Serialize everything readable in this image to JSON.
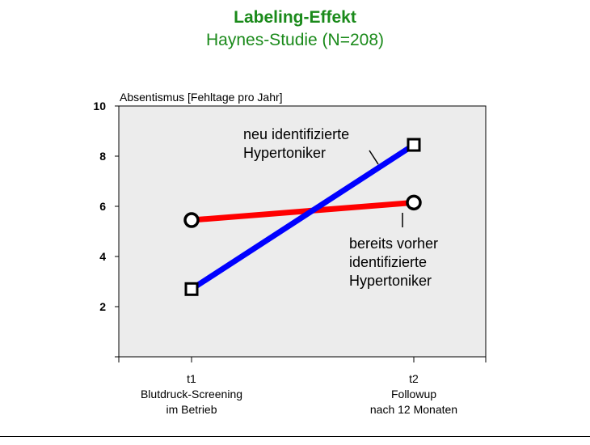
{
  "slide": {
    "title": "Labeling-Effekt",
    "subtitle": "Haynes-Studie (N=208)"
  },
  "chart_data": {
    "type": "line",
    "title": "Labeling-Effekt",
    "subtitle": "Haynes-Studie (N=208)",
    "ylabel": "Absentismus [Fehltage pro Jahr]",
    "xlabel": "",
    "ylim": [
      0,
      10
    ],
    "yticks": [
      2,
      4,
      6,
      8,
      10
    ],
    "categories": [
      {
        "key": "t1",
        "label": "t1",
        "sub1": "Blutdruck-Screening",
        "sub2": "im Betrieb"
      },
      {
        "key": "t2",
        "label": "t2",
        "sub1": "Followup",
        "sub2": "nach 12 Monaten"
      }
    ],
    "series": [
      {
        "name": "bereits vorher identifizierte Hypertoniker",
        "label_lines": [
          "bereits vorher",
          "identifizierte",
          "Hypertoniker"
        ],
        "color": "#ff0000",
        "marker": "circle",
        "values": [
          5.45,
          6.15
        ]
      },
      {
        "name": "neu identifizierte Hypertoniker",
        "label_lines": [
          "neu identifizierte",
          "Hypertoniker"
        ],
        "color": "#0000ff",
        "marker": "square",
        "values": [
          2.7,
          8.45
        ]
      }
    ],
    "grid": false,
    "plot_background": "#ececec"
  }
}
